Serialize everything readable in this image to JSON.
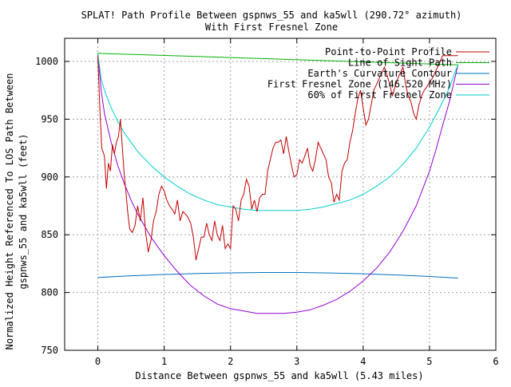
{
  "chart_data": {
    "type": "line",
    "title": "SPLAT! Path Profile Between gspnws_55 and ka5wll (290.72° azimuth)",
    "subtitle": "With First Fresnel Zone",
    "xlabel": "Distance Between gspnws_55 and ka5wll (5.43 miles)",
    "ylabel_line1": "Normalized Height Referenced To LOS Path Between",
    "ylabel_line2": "gspnws_55 and ka5wll (feet)",
    "xlim": [
      -0.5,
      6
    ],
    "ylim": [
      750,
      1020
    ],
    "xticks": [
      0,
      1,
      2,
      3,
      4,
      5,
      6
    ],
    "yticks": [
      750,
      800,
      850,
      900,
      950,
      1000
    ],
    "grid": true,
    "legend_position": "top-right",
    "colors": {
      "profile": "#c00000",
      "los": "#00b000",
      "earth": "#0070c0",
      "fresnel": "#9400d3",
      "fresnel60": "#00ced1"
    },
    "series": [
      {
        "name": "Point-to-Point Profile",
        "key": "profile",
        "x": [
          0,
          0.03,
          0.06,
          0.1,
          0.13,
          0.16,
          0.19,
          0.22,
          0.25,
          0.28,
          0.31,
          0.34,
          0.37,
          0.4,
          0.42,
          0.45,
          0.48,
          0.52,
          0.56,
          0.6,
          0.64,
          0.68,
          0.72,
          0.76,
          0.8,
          0.84,
          0.88,
          0.92,
          0.96,
          1.0,
          1.04,
          1.08,
          1.12,
          1.16,
          1.2,
          1.24,
          1.28,
          1.32,
          1.36,
          1.4,
          1.44,
          1.48,
          1.52,
          1.56,
          1.6,
          1.64,
          1.68,
          1.72,
          1.76,
          1.8,
          1.84,
          1.88,
          1.92,
          1.96,
          2.0,
          2.04,
          2.08,
          2.12,
          2.16,
          2.2,
          2.24,
          2.28,
          2.32,
          2.36,
          2.4,
          2.44,
          2.48,
          2.52,
          2.56,
          2.6,
          2.64,
          2.68,
          2.72,
          2.76,
          2.8,
          2.84,
          2.88,
          2.92,
          2.96,
          3.0,
          3.04,
          3.08,
          3.12,
          3.16,
          3.2,
          3.24,
          3.28,
          3.32,
          3.36,
          3.4,
          3.44,
          3.48,
          3.52,
          3.56,
          3.6,
          3.64,
          3.68,
          3.72,
          3.76,
          3.8,
          3.84,
          3.88,
          3.92,
          3.96,
          4.0,
          4.04,
          4.08,
          4.12,
          4.16,
          4.2,
          4.24,
          4.28,
          4.32,
          4.36,
          4.4,
          4.44,
          4.48,
          4.52,
          4.56,
          4.6,
          4.64,
          4.68,
          4.72,
          4.76,
          4.8,
          4.84,
          4.88,
          4.92,
          4.96,
          5.0,
          5.04,
          5.08,
          5.12,
          5.16,
          5.2,
          5.24,
          5.28,
          5.32,
          5.36,
          5.4,
          5.43
        ],
        "values": [
          1005,
          960,
          925,
          918,
          890,
          912,
          905,
          928,
          920,
          930,
          935,
          950,
          925,
          900,
          890,
          870,
          855,
          852,
          858,
          875,
          862,
          882,
          852,
          835,
          845,
          862,
          870,
          885,
          892,
          888,
          880,
          875,
          872,
          868,
          880,
          862,
          870,
          868,
          865,
          860,
          848,
          828,
          838,
          848,
          848,
          860,
          850,
          845,
          862,
          850,
          845,
          858,
          838,
          842,
          838,
          875,
          872,
          862,
          880,
          885,
          898,
          892,
          872,
          880,
          870,
          882,
          885,
          885,
          905,
          915,
          925,
          930,
          930,
          932,
          920,
          935,
          922,
          910,
          900,
          902,
          915,
          912,
          918,
          925,
          910,
          905,
          915,
          930,
          925,
          920,
          915,
          900,
          895,
          878,
          885,
          880,
          905,
          912,
          915,
          930,
          940,
          955,
          968,
          975,
          960,
          945,
          950,
          962,
          975,
          980,
          985,
          990,
          995,
          988,
          980,
          970,
          978,
          985,
          990,
          995,
          980,
          970,
          965,
          955,
          950,
          962,
          970,
          975,
          978,
          982,
          985,
          990,
          995,
          1000,
          1005,
          1005,
          1005,
          1005,
          1005,
          1005,
          1005
        ]
      },
      {
        "name": "Line of Sight Path",
        "key": "los",
        "x": [
          0,
          5.43
        ],
        "values": [
          1007,
          997
        ]
      },
      {
        "name": "Earth's Curvature Contour",
        "key": "earth",
        "x": [
          0,
          0.5,
          1.0,
          1.5,
          2.0,
          2.5,
          3.0,
          3.5,
          4.0,
          4.5,
          5.0,
          5.43
        ],
        "values": [
          813,
          814.5,
          815.6,
          816.4,
          817.0,
          817.3,
          817.3,
          816.9,
          816.2,
          815.2,
          813.9,
          812.5
        ]
      },
      {
        "name": "First Fresnel Zone (146.520 MHz)",
        "key": "fresnel",
        "x": [
          0,
          0.05,
          0.1,
          0.2,
          0.3,
          0.4,
          0.5,
          0.6,
          0.8,
          1.0,
          1.2,
          1.4,
          1.6,
          1.8,
          2.0,
          2.2,
          2.4,
          2.6,
          2.8,
          3.0,
          3.2,
          3.4,
          3.6,
          3.8,
          4.0,
          4.2,
          4.4,
          4.6,
          4.8,
          5.0,
          5.1,
          5.2,
          5.3,
          5.38,
          5.43
        ],
        "values": [
          1007,
          975,
          955,
          930,
          910,
          894,
          880,
          868,
          848,
          832,
          818,
          806,
          797,
          790,
          786,
          784,
          782,
          782,
          782,
          783,
          785,
          789,
          794,
          801,
          810,
          821,
          835,
          853,
          875,
          905,
          924,
          945,
          965,
          985,
          997
        ]
      },
      {
        "name": "60% of First Fresnel Zone",
        "key": "fresnel60",
        "x": [
          0,
          0.05,
          0.1,
          0.2,
          0.3,
          0.4,
          0.5,
          0.6,
          0.8,
          1.0,
          1.2,
          1.4,
          1.6,
          1.8,
          2.0,
          2.2,
          2.4,
          2.6,
          2.8,
          3.0,
          3.2,
          3.4,
          3.6,
          3.8,
          4.0,
          4.2,
          4.4,
          4.6,
          4.8,
          5.0,
          5.1,
          5.2,
          5.3,
          5.38,
          5.43
        ],
        "values": [
          1007,
          985,
          975,
          960,
          948,
          938,
          930,
          922,
          910,
          900,
          892,
          885,
          880,
          876,
          874,
          872,
          871,
          871,
          871,
          871,
          872,
          874,
          877,
          880,
          885,
          892,
          900,
          911,
          925,
          943,
          954,
          965,
          977,
          990,
          997
        ]
      }
    ]
  }
}
